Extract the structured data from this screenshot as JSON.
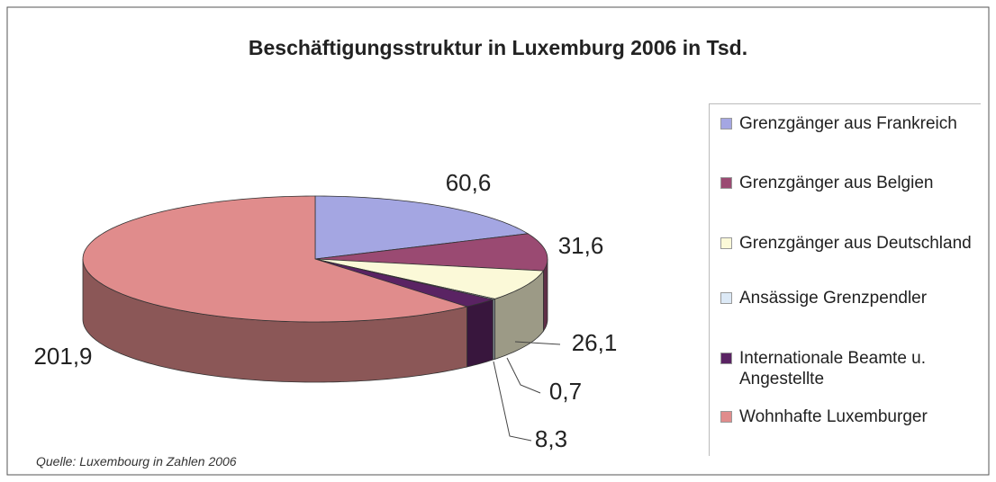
{
  "chart_data": {
    "type": "pie",
    "title": "Beschäftigungsstruktur in Luxemburg 2006 in Tsd.",
    "categories": [
      "Grenzgänger aus Frankreich",
      "Grenzgänger aus Belgien",
      "Grenzgänger aus Deutschland",
      "Ansässige Grenzpendler",
      "Internationale Beamte u. Angestellte",
      "Wohnhafte Luxemburger"
    ],
    "values": [
      60.6,
      31.6,
      26.1,
      0.7,
      8.3,
      201.9
    ],
    "value_labels": [
      "60,6",
      "31,6",
      "26,1",
      "0,7",
      "8,3",
      "201,9"
    ],
    "colors": [
      "#a4a6e2",
      "#9a4a72",
      "#fbf9d8",
      "#dce9f6",
      "#5a2363",
      "#e08c8c"
    ],
    "legend": "right",
    "source": "Quelle: Luxembourg in Zahlen 2006"
  }
}
